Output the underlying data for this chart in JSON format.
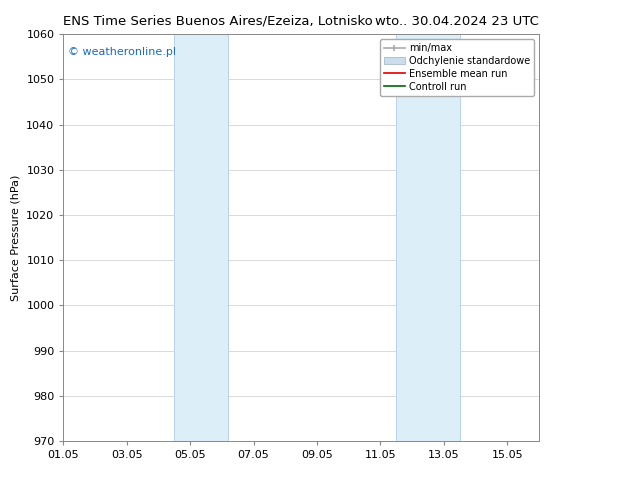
{
  "title_left": "ENS Time Series Buenos Aires/Ezeiza, Lotnisko",
  "title_right": "wto.. 30.04.2024 23 UTC",
  "ylabel": "Surface Pressure (hPa)",
  "xlim_start": 0,
  "xlim_end": 15.0,
  "ylim_bottom": 970,
  "ylim_top": 1060,
  "yticks": [
    970,
    980,
    990,
    1000,
    1010,
    1020,
    1030,
    1040,
    1050,
    1060
  ],
  "xtick_labels": [
    "01.05",
    "03.05",
    "05.05",
    "07.05",
    "09.05",
    "11.05",
    "13.05",
    "15.05"
  ],
  "xtick_positions": [
    0,
    2,
    4,
    6,
    8,
    10,
    12,
    14
  ],
  "shaded_bands": [
    {
      "x_start": 3.5,
      "x_end": 5.2
    },
    {
      "x_start": 10.5,
      "x_end": 12.5
    }
  ],
  "band_color": "#dceef8",
  "band_edge_color": "#b8d4e8",
  "watermark_text": "© weatheronline.pl",
  "watermark_color": "#1a6bbd",
  "legend_labels": [
    "min/max",
    "Odchylenie standardowe",
    "Ensemble mean run",
    "Controll run"
  ],
  "legend_colors_line": [
    "#aaaaaa",
    "#ccddee",
    "#ff0000",
    "#008000"
  ],
  "background_color": "#ffffff",
  "plot_bg_color": "#ffffff",
  "grid_color": "#cccccc",
  "title_fontsize": 9.5,
  "ylabel_fontsize": 8,
  "tick_fontsize": 8,
  "legend_fontsize": 7,
  "watermark_fontsize": 8
}
